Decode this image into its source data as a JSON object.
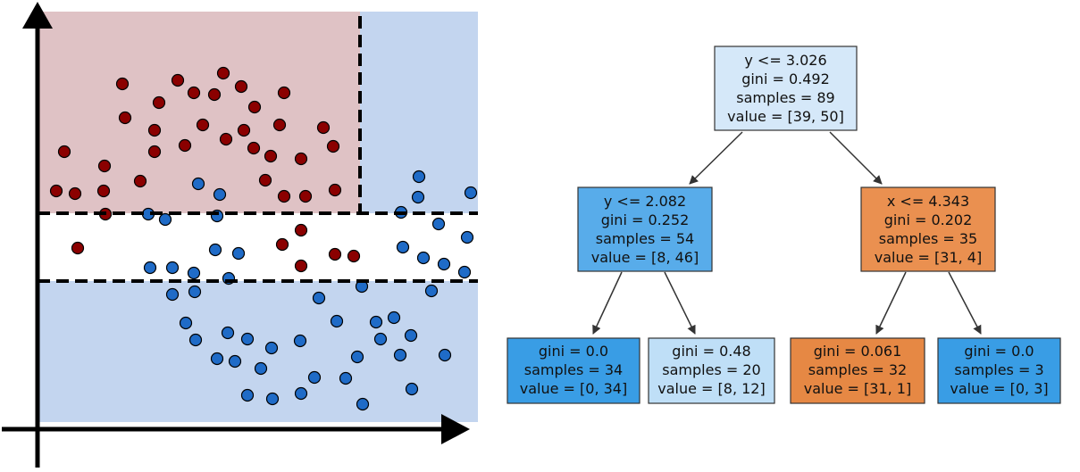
{
  "scatter": {
    "region_colors": {
      "red_region": "#dfc2c5",
      "blue_region": "#c3d5ef",
      "white_band": "#ffffff"
    },
    "point_colors": {
      "class_red": "#8b0000",
      "class_blue": "#1f6bc7"
    },
    "red_points": [
      [
        72,
        170
      ],
      [
        63,
        214
      ],
      [
        84,
        217
      ],
      [
        87,
        278
      ],
      [
        117,
        186
      ],
      [
        116,
        214
      ],
      [
        118,
        240
      ],
      [
        137,
        94
      ],
      [
        140,
        132
      ],
      [
        157,
        203
      ],
      [
        173,
        146
      ],
      [
        173,
        170
      ],
      [
        178,
        115
      ],
      [
        199,
        90
      ],
      [
        207,
        163
      ],
      [
        217,
        104
      ],
      [
        227,
        140
      ],
      [
        240,
        106
      ],
      [
        250,
        82
      ],
      [
        253,
        156
      ],
      [
        270,
        97
      ],
      [
        273,
        146
      ],
      [
        285,
        120
      ],
      [
        284,
        166
      ],
      [
        297,
        202
      ],
      [
        313,
        140
      ],
      [
        318,
        104
      ],
      [
        303,
        175
      ],
      [
        318,
        220
      ],
      [
        337,
        178
      ],
      [
        342,
        220
      ],
      [
        362,
        143
      ],
      [
        373,
        164
      ],
      [
        375,
        213
      ],
      [
        316,
        274
      ],
      [
        337,
        258
      ],
      [
        337,
        298
      ],
      [
        375,
        285
      ],
      [
        396,
        287
      ]
    ],
    "blue_points": [
      [
        222,
        206
      ],
      [
        246,
        218
      ],
      [
        243,
        242
      ],
      [
        166,
        240
      ],
      [
        185,
        246
      ],
      [
        168,
        300
      ],
      [
        193,
        300
      ],
      [
        217,
        306
      ],
      [
        193,
        330
      ],
      [
        218,
        327
      ],
      [
        241,
        280
      ],
      [
        267,
        284
      ],
      [
        256,
        312
      ],
      [
        208,
        362
      ],
      [
        219,
        381
      ],
      [
        255,
        373
      ],
      [
        277,
        380
      ],
      [
        243,
        402
      ],
      [
        263,
        405
      ],
      [
        304,
        390
      ],
      [
        292,
        413
      ],
      [
        277,
        443
      ],
      [
        305,
        447
      ],
      [
        336,
        382
      ],
      [
        337,
        441
      ],
      [
        352,
        423
      ],
      [
        357,
        334
      ],
      [
        377,
        360
      ],
      [
        387,
        424
      ],
      [
        400,
        400
      ],
      [
        405,
        321
      ],
      [
        406,
        453
      ],
      [
        421,
        361
      ],
      [
        441,
        356
      ],
      [
        426,
        380
      ],
      [
        448,
        398
      ],
      [
        461,
        436
      ],
      [
        460,
        376
      ],
      [
        449,
        238
      ],
      [
        468,
        221
      ],
      [
        469,
        198
      ],
      [
        451,
        277
      ],
      [
        474,
        289
      ],
      [
        483,
        326
      ],
      [
        491,
        251
      ],
      [
        497,
        296
      ],
      [
        498,
        398
      ],
      [
        520,
        305
      ],
      [
        523,
        266
      ],
      [
        527,
        216
      ]
    ]
  },
  "tree": {
    "root": {
      "lines": [
        "y <= 3.026",
        "gini = 0.492",
        "samples = 89",
        "value = [39, 50]"
      ],
      "fill": "#d5e8f9"
    },
    "left": {
      "lines": [
        "y <= 2.082",
        "gini = 0.252",
        "samples = 54",
        "value = [8, 46]"
      ],
      "fill": "#58acea"
    },
    "right": {
      "lines": [
        "x <= 4.343",
        "gini = 0.202",
        "samples = 35",
        "value = [31, 4]"
      ],
      "fill": "#ea9050"
    },
    "leaf_ll": {
      "lines": [
        "gini = 0.0",
        "samples = 34",
        "value = [0, 34]"
      ],
      "fill": "#399de5"
    },
    "leaf_lr": {
      "lines": [
        "gini = 0.48",
        "samples = 20",
        "value = [8, 12]"
      ],
      "fill": "#bfdff7"
    },
    "leaf_rl": {
      "lines": [
        "gini = 0.061",
        "samples = 32",
        "value = [31, 1]"
      ],
      "fill": "#e68844"
    },
    "leaf_rr": {
      "lines": [
        "gini = 0.0",
        "samples = 3",
        "value = [0, 3]"
      ],
      "fill": "#399de5"
    }
  }
}
